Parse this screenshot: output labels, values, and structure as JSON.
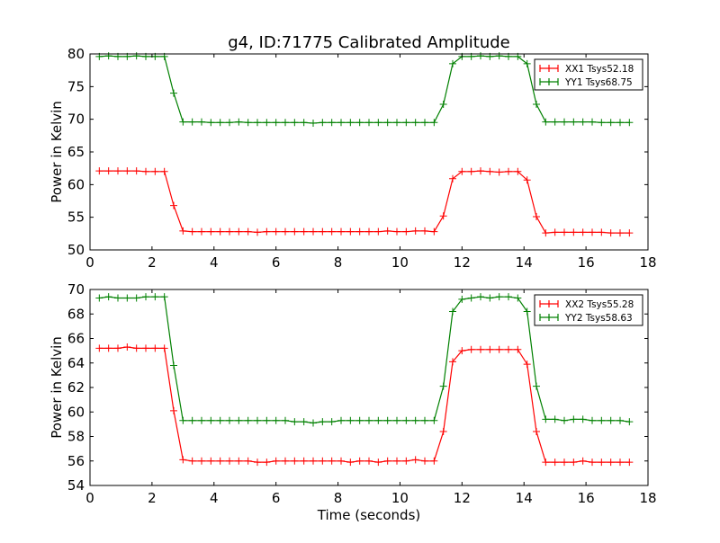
{
  "chart_data": [
    {
      "type": "line",
      "title": "g4, ID:71775 Calibrated Amplitude",
      "xlabel": "",
      "ylabel": "Power in Kelvin",
      "xlim": [
        0,
        18
      ],
      "ylim": [
        50,
        80
      ],
      "xticks": [
        0,
        2,
        4,
        6,
        8,
        10,
        12,
        14,
        16,
        18
      ],
      "yticks": [
        50,
        55,
        60,
        65,
        70,
        75,
        80
      ],
      "grid": false,
      "legend_position": "top-right",
      "x_start": 0.3,
      "x_step": 0.3,
      "series": [
        {
          "name": "XX1 Tsys52.18",
          "color": "#ff0000",
          "values": [
            62.1,
            62.1,
            62.1,
            62.1,
            62.1,
            62.0,
            62.0,
            62.0,
            56.8,
            52.9,
            52.8,
            52.8,
            52.8,
            52.8,
            52.8,
            52.8,
            52.8,
            52.7,
            52.8,
            52.8,
            52.8,
            52.8,
            52.8,
            52.8,
            52.8,
            52.8,
            52.8,
            52.8,
            52.8,
            52.8,
            52.8,
            52.9,
            52.8,
            52.8,
            52.9,
            52.9,
            52.8,
            55.2,
            60.9,
            62.0,
            62.0,
            62.1,
            62.0,
            61.9,
            62.0,
            62.0,
            60.7,
            55.1,
            52.6,
            52.7,
            52.7,
            52.7,
            52.7,
            52.7,
            52.7,
            52.6,
            52.6,
            52.6
          ]
        },
        {
          "name": "YY1 Tsys68.75",
          "color": "#008000",
          "values": [
            79.6,
            79.7,
            79.6,
            79.6,
            79.7,
            79.6,
            79.6,
            79.6,
            74.0,
            69.6,
            69.6,
            69.6,
            69.5,
            69.5,
            69.5,
            69.6,
            69.5,
            69.5,
            69.5,
            69.5,
            69.5,
            69.5,
            69.5,
            69.4,
            69.5,
            69.5,
            69.5,
            69.5,
            69.5,
            69.5,
            69.5,
            69.5,
            69.5,
            69.5,
            69.5,
            69.5,
            69.5,
            72.3,
            78.5,
            79.6,
            79.6,
            79.7,
            79.6,
            79.7,
            79.6,
            79.6,
            78.5,
            72.3,
            69.6,
            69.6,
            69.6,
            69.6,
            69.6,
            69.6,
            69.5,
            69.5,
            69.5,
            69.5
          ]
        }
      ]
    },
    {
      "type": "line",
      "title": "",
      "xlabel": "Time (seconds)",
      "ylabel": "Power in Kelvin",
      "xlim": [
        0,
        18
      ],
      "ylim": [
        54,
        70
      ],
      "xticks": [
        0,
        2,
        4,
        6,
        8,
        10,
        12,
        14,
        16,
        18
      ],
      "yticks": [
        54,
        56,
        58,
        60,
        62,
        64,
        66,
        68,
        70
      ],
      "grid": false,
      "legend_position": "top-right",
      "x_start": 0.3,
      "x_step": 0.3,
      "series": [
        {
          "name": "XX2 Tsys55.28",
          "color": "#ff0000",
          "values": [
            65.2,
            65.2,
            65.2,
            65.3,
            65.2,
            65.2,
            65.2,
            65.2,
            60.1,
            56.1,
            56.0,
            56.0,
            56.0,
            56.0,
            56.0,
            56.0,
            56.0,
            55.9,
            55.9,
            56.0,
            56.0,
            56.0,
            56.0,
            56.0,
            56.0,
            56.0,
            56.0,
            55.9,
            56.0,
            56.0,
            55.9,
            56.0,
            56.0,
            56.0,
            56.1,
            56.0,
            56.0,
            58.4,
            64.1,
            65.0,
            65.1,
            65.1,
            65.1,
            65.1,
            65.1,
            65.1,
            63.9,
            58.4,
            55.9,
            55.9,
            55.9,
            55.9,
            56.0,
            55.9,
            55.9,
            55.9,
            55.9,
            55.9
          ]
        },
        {
          "name": "YY2 Tsys58.63",
          "color": "#008000",
          "values": [
            69.3,
            69.4,
            69.3,
            69.3,
            69.3,
            69.4,
            69.4,
            69.4,
            63.8,
            59.3,
            59.3,
            59.3,
            59.3,
            59.3,
            59.3,
            59.3,
            59.3,
            59.3,
            59.3,
            59.3,
            59.3,
            59.2,
            59.2,
            59.1,
            59.2,
            59.2,
            59.3,
            59.3,
            59.3,
            59.3,
            59.3,
            59.3,
            59.3,
            59.3,
            59.3,
            59.3,
            59.3,
            62.1,
            68.2,
            69.2,
            69.3,
            69.4,
            69.3,
            69.4,
            69.4,
            69.3,
            68.2,
            62.1,
            59.4,
            59.4,
            59.3,
            59.4,
            59.4,
            59.3,
            59.3,
            59.3,
            59.3,
            59.2
          ]
        }
      ]
    }
  ]
}
